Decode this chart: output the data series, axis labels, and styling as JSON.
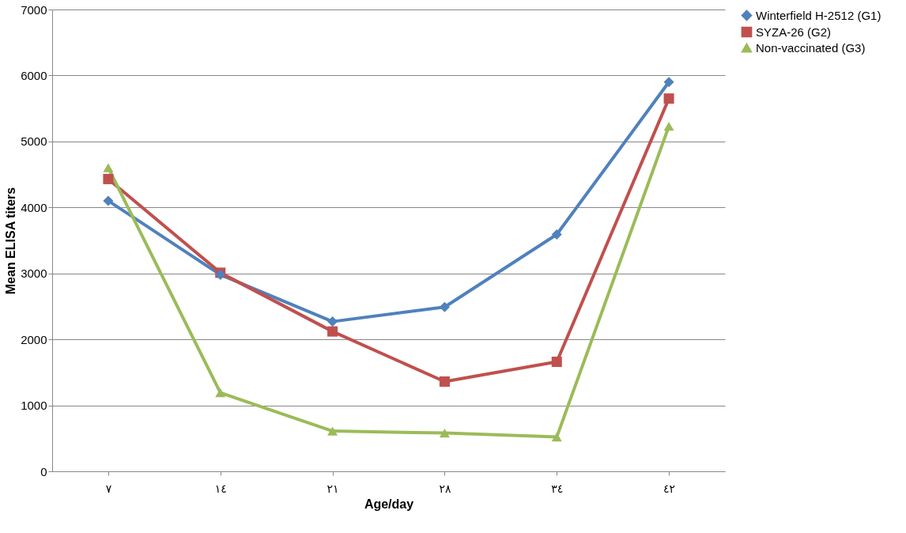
{
  "chart_data": {
    "type": "line",
    "xlabel": "Age/day",
    "ylabel": "Mean ELISA titers",
    "categories": [
      "٧",
      "١٤",
      "٢١",
      "٢٨",
      "٣٤",
      "٤٢"
    ],
    "series": [
      {
        "name": "Winterfield H-2512 (G1)",
        "color": "#4f81bd",
        "marker": "diamond",
        "values": [
          4100,
          2980,
          2270,
          2490,
          3590,
          5900
        ]
      },
      {
        "name": "SYZA-26 (G2)",
        "color": "#c0504d",
        "marker": "square",
        "values": [
          4430,
          3010,
          2120,
          1360,
          1660,
          5650
        ]
      },
      {
        "name": "Non-vaccinated (G3)",
        "color": "#9bbb59",
        "marker": "triangle",
        "values": [
          4600,
          1190,
          610,
          580,
          520,
          5230
        ]
      }
    ],
    "ylim": [
      0,
      7000
    ],
    "yticks": [
      0,
      1000,
      2000,
      3000,
      4000,
      5000,
      6000,
      7000
    ],
    "grid": "y",
    "legend": "right",
    "line_style": "solid"
  }
}
